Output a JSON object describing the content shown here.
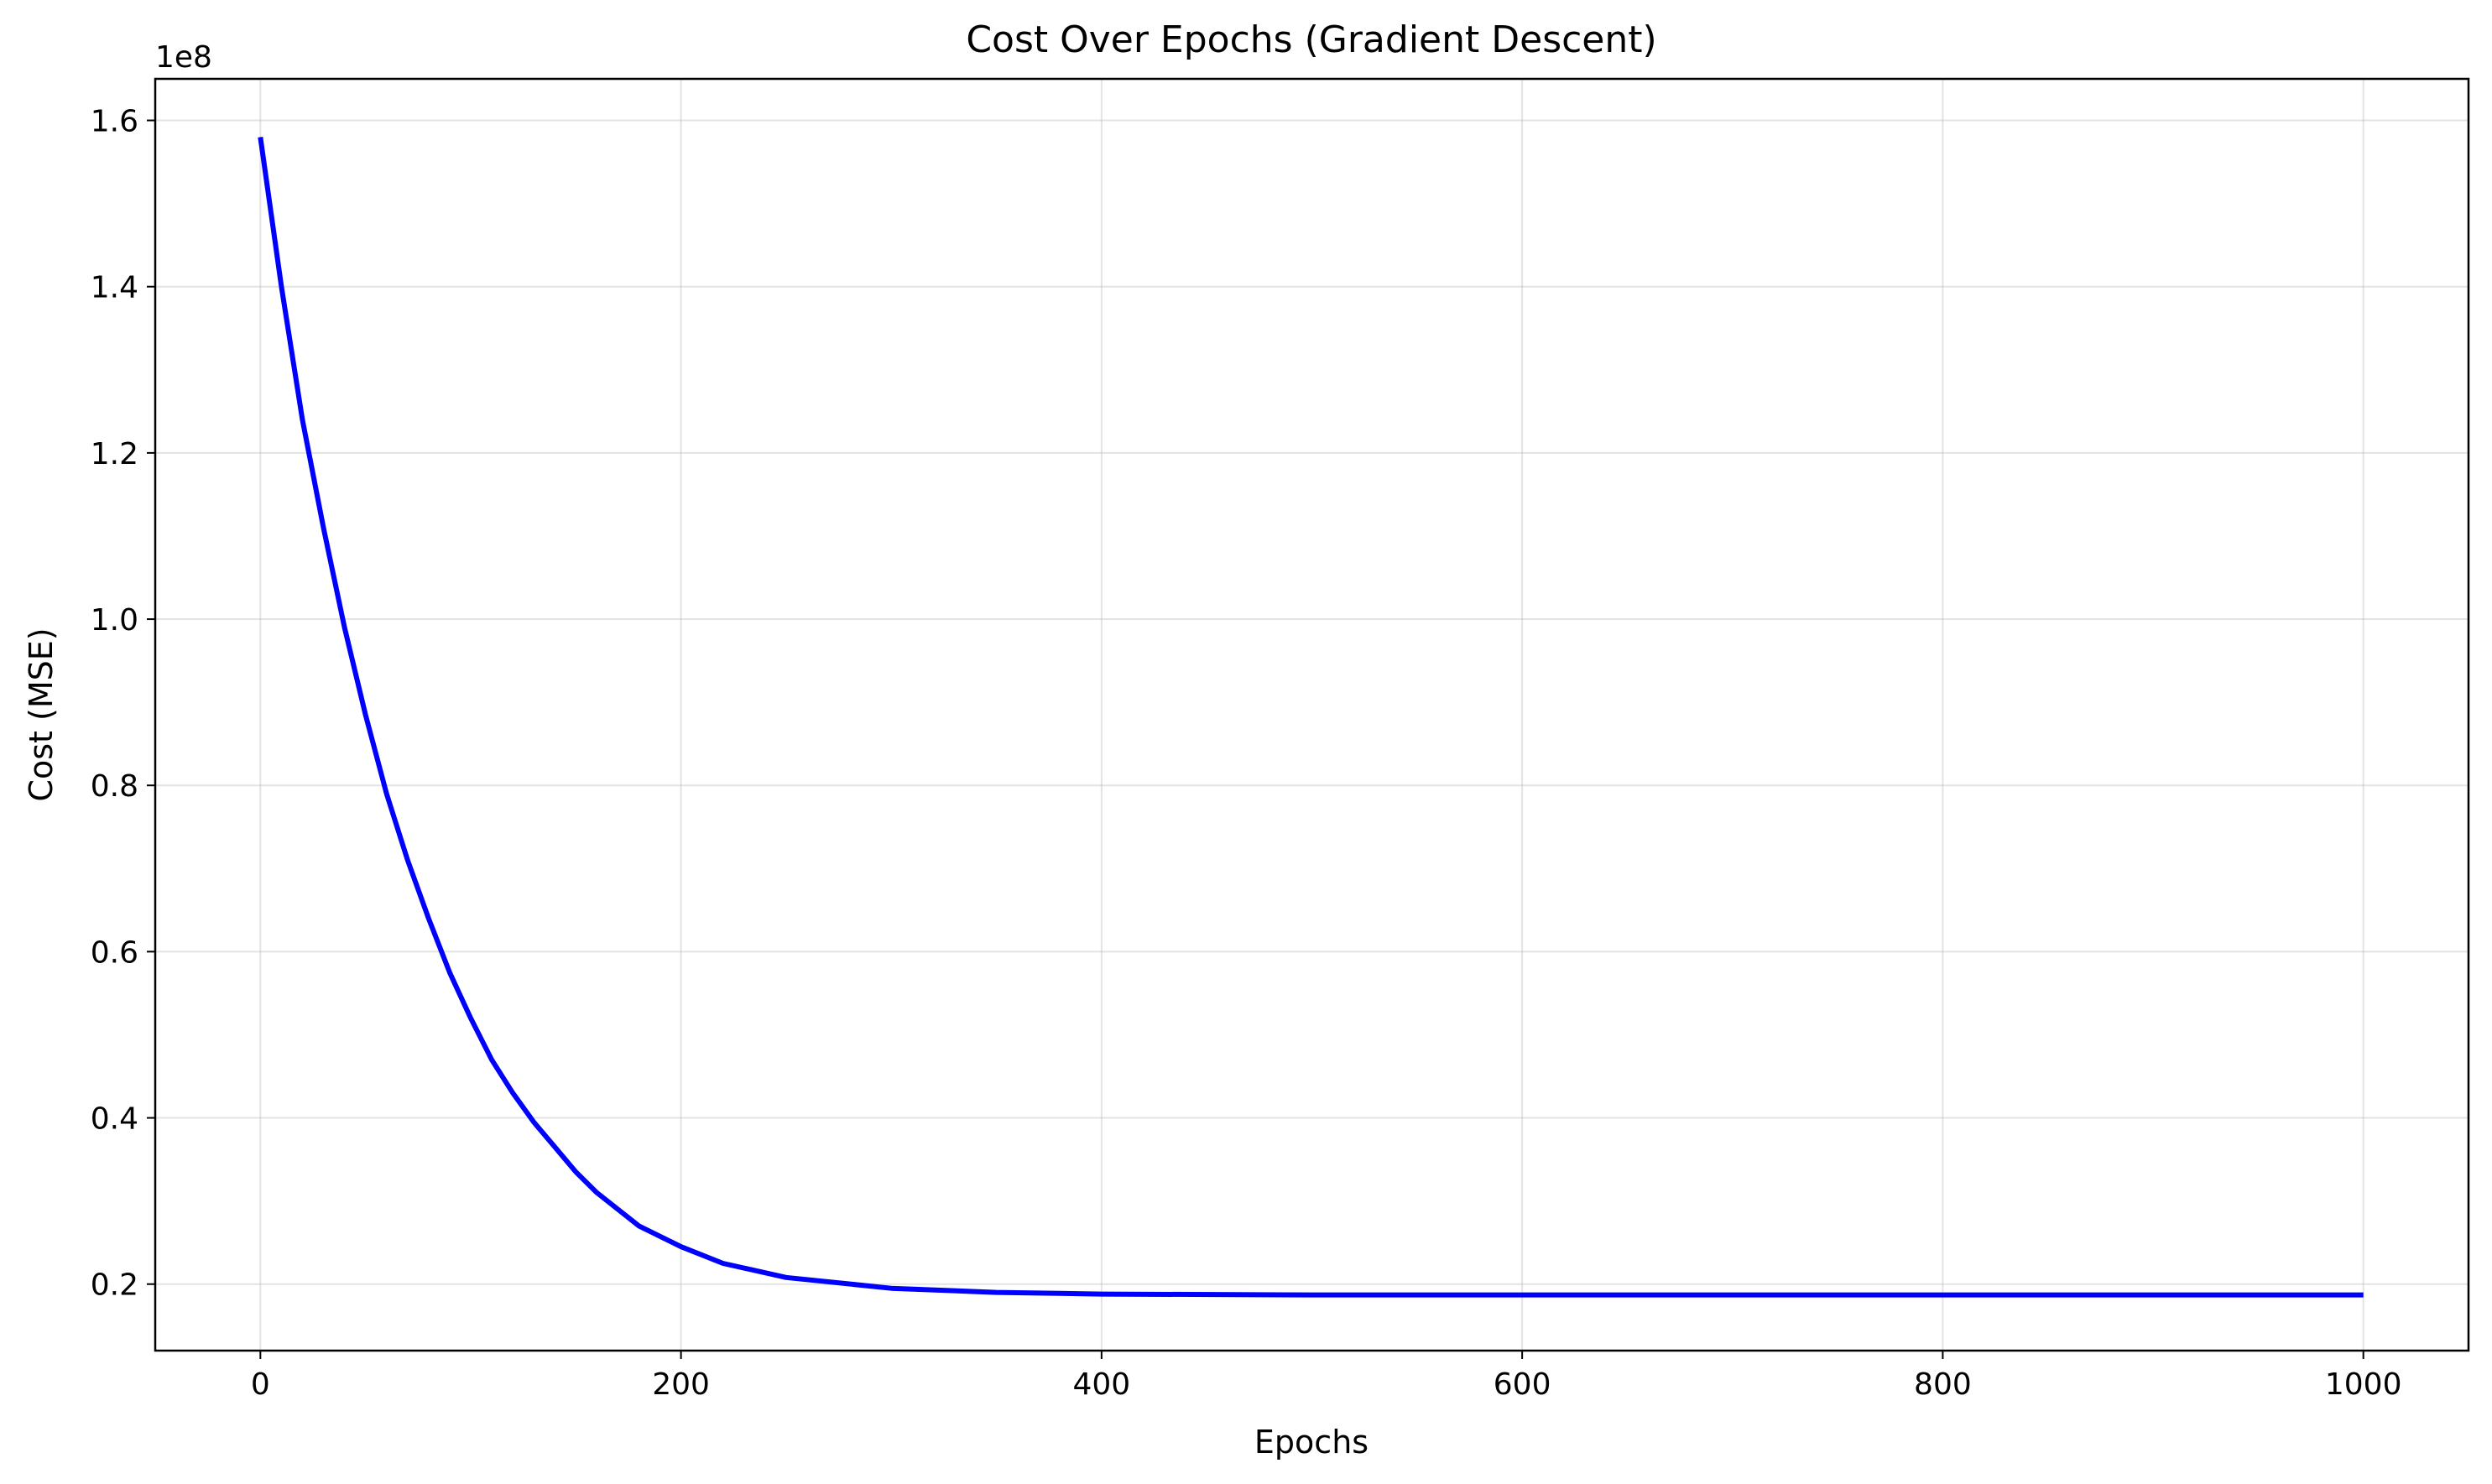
{
  "chart_data": {
    "type": "line",
    "title": "Cost Over Epochs (Gradient Descent)",
    "xlabel": "Epochs",
    "ylabel": "Cost (MSE)",
    "y_offset_label": "1e8",
    "xlim": [
      -50,
      1050
    ],
    "ylim": [
      0.12,
      1.65
    ],
    "x_ticks": [
      0,
      200,
      400,
      600,
      800,
      1000
    ],
    "x_tick_labels": [
      "0",
      "200",
      "400",
      "600",
      "800",
      "1000"
    ],
    "y_ticks": [
      0.2,
      0.4,
      0.6,
      0.8,
      1.0,
      1.2,
      1.4,
      1.6
    ],
    "y_tick_labels": [
      "0.2",
      "0.4",
      "0.6",
      "0.8",
      "1.0",
      "1.2",
      "1.4",
      "1.6"
    ],
    "grid": true,
    "series": [
      {
        "color": "#0000ff",
        "x": [
          0,
          10,
          20,
          30,
          40,
          50,
          60,
          70,
          80,
          90,
          100,
          110,
          120,
          130,
          140,
          150,
          160,
          180,
          200,
          220,
          250,
          300,
          350,
          400,
          500,
          600,
          700,
          800,
          900,
          1000
        ],
        "y": [
          1.58,
          1.4,
          1.24,
          1.11,
          0.99,
          0.885,
          0.79,
          0.71,
          0.64,
          0.575,
          0.52,
          0.47,
          0.43,
          0.395,
          0.365,
          0.335,
          0.31,
          0.27,
          0.245,
          0.225,
          0.208,
          0.195,
          0.19,
          0.188,
          0.187,
          0.187,
          0.187,
          0.187,
          0.187,
          0.187
        ]
      }
    ]
  }
}
